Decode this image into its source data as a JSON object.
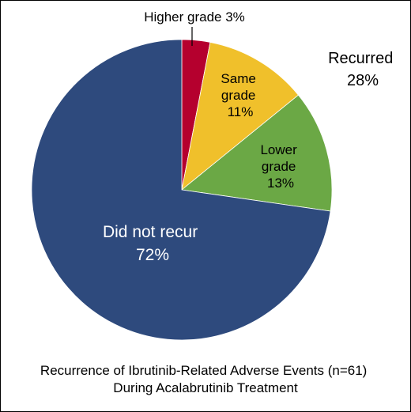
{
  "chart_data": {
    "type": "pie",
    "slices": [
      {
        "label": "Higher grade",
        "pct_text": "3%",
        "value": 3,
        "color": "#B5002E"
      },
      {
        "label": "Same grade",
        "pct_text": "11%",
        "value": 11,
        "color": "#F0C02B"
      },
      {
        "label": "Lower grade",
        "pct_text": "13%",
        "value": 13,
        "color": "#6BA845"
      },
      {
        "label": "Did not recur",
        "pct_text": "72%",
        "value": 72,
        "color": "#2E4A7D"
      }
    ],
    "annotation": {
      "title": "Recurred",
      "value": "28%"
    },
    "caption": {
      "line1": "Recurrence of Ibrutinib-Related Adverse Events (n=61)",
      "line2": "During Acalabrutinib Treatment"
    }
  }
}
